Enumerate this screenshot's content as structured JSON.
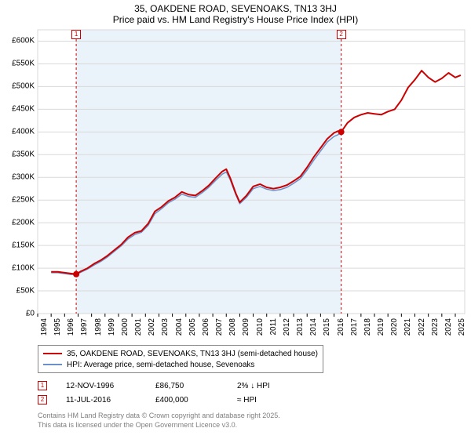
{
  "chart": {
    "type": "line",
    "title_line1": "35, OAKDENE ROAD, SEVENOAKS, TN13 3HJ",
    "title_line2": "Price paid vs. HM Land Registry's House Price Index (HPI)",
    "title_fontsize": 12,
    "background_color": "#ffffff",
    "plot_band_color": "#eaf2fa",
    "label_fontsize": 10,
    "x": {
      "min": 1994,
      "max": 2025.7,
      "ticks": [
        1994,
        1995,
        1996,
        1997,
        1998,
        1999,
        2000,
        2001,
        2002,
        2003,
        2004,
        2005,
        2006,
        2007,
        2008,
        2009,
        2010,
        2011,
        2012,
        2013,
        2014,
        2015,
        2016,
        2017,
        2018,
        2019,
        2020,
        2021,
        2022,
        2023,
        2024,
        2025
      ]
    },
    "y": {
      "min": 0,
      "max": 625000,
      "ticks": [
        0,
        50000,
        100000,
        150000,
        200000,
        250000,
        300000,
        350000,
        400000,
        450000,
        500000,
        550000,
        600000
      ],
      "labels": [
        "£0",
        "£50K",
        "£100K",
        "£150K",
        "£200K",
        "£250K",
        "£300K",
        "£350K",
        "£400K",
        "£450K",
        "£500K",
        "£550K",
        "£600K"
      ]
    },
    "grid_color": "#d9d9d9",
    "series": [
      {
        "name": "35, OAKDENE ROAD, SEVENOAKS, TN13 3HJ (semi-detached house)",
        "color": "#cc0000",
        "width": 2,
        "points": [
          [
            1995.0,
            92000
          ],
          [
            1995.5,
            92000
          ],
          [
            1996.0,
            90000
          ],
          [
            1996.5,
            88000
          ],
          [
            1996.86,
            86750
          ],
          [
            1997.2,
            93000
          ],
          [
            1997.7,
            100000
          ],
          [
            1998.2,
            110000
          ],
          [
            1998.7,
            118000
          ],
          [
            1999.2,
            128000
          ],
          [
            1999.7,
            140000
          ],
          [
            2000.2,
            152000
          ],
          [
            2000.7,
            168000
          ],
          [
            2001.2,
            178000
          ],
          [
            2001.7,
            182000
          ],
          [
            2002.2,
            198000
          ],
          [
            2002.7,
            225000
          ],
          [
            2003.2,
            235000
          ],
          [
            2003.7,
            248000
          ],
          [
            2004.2,
            256000
          ],
          [
            2004.7,
            268000
          ],
          [
            2005.2,
            262000
          ],
          [
            2005.7,
            260000
          ],
          [
            2006.2,
            270000
          ],
          [
            2006.7,
            282000
          ],
          [
            2007.2,
            298000
          ],
          [
            2007.7,
            313000
          ],
          [
            2008.0,
            318000
          ],
          [
            2008.3,
            298000
          ],
          [
            2008.7,
            265000
          ],
          [
            2009.0,
            245000
          ],
          [
            2009.5,
            260000
          ],
          [
            2010.0,
            280000
          ],
          [
            2010.5,
            285000
          ],
          [
            2011.0,
            278000
          ],
          [
            2011.5,
            275000
          ],
          [
            2012.0,
            278000
          ],
          [
            2012.5,
            283000
          ],
          [
            2013.0,
            292000
          ],
          [
            2013.5,
            302000
          ],
          [
            2014.0,
            322000
          ],
          [
            2014.5,
            345000
          ],
          [
            2015.0,
            365000
          ],
          [
            2015.5,
            385000
          ],
          [
            2016.0,
            398000
          ],
          [
            2016.3,
            402000
          ],
          [
            2016.53,
            400000
          ],
          [
            2017.0,
            420000
          ],
          [
            2017.5,
            432000
          ],
          [
            2018.0,
            438000
          ],
          [
            2018.5,
            442000
          ],
          [
            2019.0,
            440000
          ],
          [
            2019.5,
            438000
          ],
          [
            2020.0,
            445000
          ],
          [
            2020.5,
            450000
          ],
          [
            2021.0,
            470000
          ],
          [
            2021.5,
            498000
          ],
          [
            2022.0,
            515000
          ],
          [
            2022.5,
            535000
          ],
          [
            2023.0,
            520000
          ],
          [
            2023.5,
            510000
          ],
          [
            2024.0,
            518000
          ],
          [
            2024.5,
            530000
          ],
          [
            2025.0,
            520000
          ],
          [
            2025.4,
            525000
          ]
        ]
      },
      {
        "name": "HPI: Average price, semi-detached house, Sevenoaks",
        "color": "#6b8fc9",
        "width": 1.5,
        "points": [
          [
            1995.0,
            90000
          ],
          [
            1995.5,
            90000
          ],
          [
            1996.0,
            88000
          ],
          [
            1996.5,
            86000
          ],
          [
            1996.86,
            86750
          ],
          [
            1997.2,
            91000
          ],
          [
            1997.7,
            98000
          ],
          [
            1998.2,
            107000
          ],
          [
            1998.7,
            115000
          ],
          [
            1999.2,
            125000
          ],
          [
            1999.7,
            137000
          ],
          [
            2000.2,
            149000
          ],
          [
            2000.7,
            164000
          ],
          [
            2001.2,
            174000
          ],
          [
            2001.7,
            179000
          ],
          [
            2002.2,
            194000
          ],
          [
            2002.7,
            220000
          ],
          [
            2003.2,
            231000
          ],
          [
            2003.7,
            244000
          ],
          [
            2004.2,
            252000
          ],
          [
            2004.7,
            263000
          ],
          [
            2005.2,
            258000
          ],
          [
            2005.7,
            256000
          ],
          [
            2006.2,
            266000
          ],
          [
            2006.7,
            278000
          ],
          [
            2007.2,
            293000
          ],
          [
            2007.7,
            307000
          ],
          [
            2008.0,
            312000
          ],
          [
            2008.3,
            294000
          ],
          [
            2008.7,
            262000
          ],
          [
            2009.0,
            242000
          ],
          [
            2009.5,
            256000
          ],
          [
            2010.0,
            275000
          ],
          [
            2010.5,
            280000
          ],
          [
            2011.0,
            274000
          ],
          [
            2011.5,
            271000
          ],
          [
            2012.0,
            273000
          ],
          [
            2012.5,
            278000
          ],
          [
            2013.0,
            287000
          ],
          [
            2013.5,
            297000
          ],
          [
            2014.0,
            316000
          ],
          [
            2014.5,
            338000
          ],
          [
            2015.0,
            358000
          ],
          [
            2015.5,
            378000
          ],
          [
            2016.0,
            390000
          ],
          [
            2016.3,
            394000
          ],
          [
            2016.53,
            400000
          ]
        ]
      }
    ],
    "sale_markers": [
      {
        "num": "1",
        "x": 1996.86,
        "y": 86750,
        "color": "#cc0000"
      },
      {
        "num": "2",
        "x": 2016.53,
        "y": 400000,
        "color": "#cc0000"
      }
    ],
    "flag_markers": [
      {
        "num": "1",
        "x": 1996.86,
        "color": "#cc0000"
      },
      {
        "num": "2",
        "x": 2016.53,
        "color": "#cc0000"
      }
    ]
  },
  "legend": {
    "items": [
      {
        "color": "#cc0000",
        "label": "35, OAKDENE ROAD, SEVENOAKS, TN13 3HJ (semi-detached house)"
      },
      {
        "color": "#6b8fc9",
        "label": "HPI: Average price, semi-detached house, Sevenoaks"
      }
    ]
  },
  "sales": [
    {
      "marker": "1",
      "marker_color": "#cc0000",
      "date": "12-NOV-1996",
      "price": "£86,750",
      "delta": "2% ↓ HPI"
    },
    {
      "marker": "2",
      "marker_color": "#cc0000",
      "date": "11-JUL-2016",
      "price": "£400,000",
      "delta": "≈ HPI"
    }
  ],
  "credit": {
    "line1": "Contains HM Land Registry data © Crown copyright and database right 2025.",
    "line2": "This data is licensed under the Open Government Licence v3.0."
  }
}
